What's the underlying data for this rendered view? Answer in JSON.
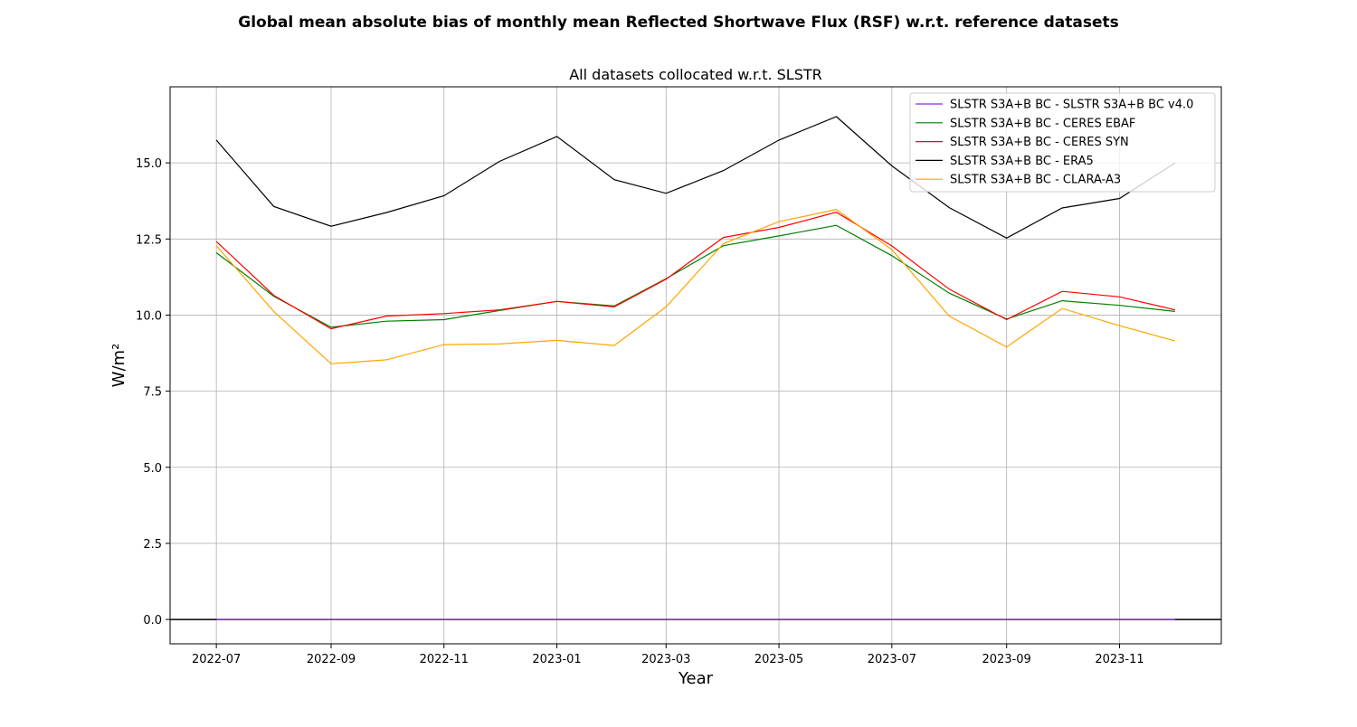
{
  "chart_data": {
    "type": "line",
    "title": "Global mean absolute bias of monthly mean Reflected Shortwave Flux (RSF) w.r.t. reference datasets",
    "subtitle": "All datasets collocated w.r.t. SLSTR",
    "xlabel": "Year",
    "ylabel": "W/m²",
    "xlim": [
      "2022-06-06",
      "2023-12-26"
    ],
    "ylim": [
      -0.8,
      17.5
    ],
    "x_ticks": [
      "2022-07",
      "2022-09",
      "2022-11",
      "2023-01",
      "2023-03",
      "2023-05",
      "2023-07",
      "2023-09",
      "2023-11"
    ],
    "y_ticks": [
      "0.0",
      "2.5",
      "5.0",
      "7.5",
      "10.0",
      "12.5",
      "15.0"
    ],
    "y_tick_values": [
      0,
      2.5,
      5,
      7.5,
      10,
      12.5,
      15
    ],
    "grid": true,
    "legend_position": "top-right",
    "zero_line": 0,
    "x": [
      "2022-07",
      "2022-08",
      "2022-09",
      "2022-10",
      "2022-11",
      "2022-12",
      "2023-01",
      "2023-02",
      "2023-03",
      "2023-04",
      "2023-05",
      "2023-06",
      "2023-07",
      "2023-08",
      "2023-09",
      "2023-10",
      "2023-11",
      "2023-12"
    ],
    "series": [
      {
        "name": "SLSTR S3A+B BC - SLSTR S3A+B BC v4.0",
        "color": "#8a2be2",
        "values": [
          0,
          0,
          0,
          0,
          0,
          0,
          0,
          0,
          0,
          0,
          0,
          0,
          0,
          0,
          0,
          0,
          0,
          0
        ]
      },
      {
        "name": "SLSTR S3A+B BC - CERES EBAF",
        "color": "#008000",
        "values": [
          12.05,
          10.62,
          9.6,
          9.8,
          9.85,
          10.15,
          10.45,
          10.3,
          11.2,
          12.28,
          12.6,
          12.95,
          11.95,
          10.72,
          9.87,
          10.47,
          10.32,
          10.12
        ]
      },
      {
        "name": "SLSTR S3A+B BC - CERES SYN",
        "color": "#ff0000",
        "values": [
          12.42,
          10.65,
          9.55,
          9.97,
          10.05,
          10.17,
          10.45,
          10.27,
          11.18,
          12.55,
          12.88,
          13.38,
          12.27,
          10.85,
          9.85,
          10.78,
          10.6,
          10.17
        ]
      },
      {
        "name": "SLSTR S3A+B BC - ERA5",
        "color": "#000000",
        "values": [
          15.75,
          13.57,
          12.92,
          13.37,
          13.92,
          15.05,
          15.87,
          14.45,
          14.0,
          14.75,
          15.75,
          16.52,
          14.9,
          13.53,
          12.53,
          13.52,
          13.83,
          15.0
        ]
      },
      {
        "name": "SLSTR S3A+B BC - CLARA-A3",
        "color": "#ffa500",
        "values": [
          12.28,
          10.12,
          8.4,
          8.53,
          9.03,
          9.05,
          9.17,
          9.0,
          10.27,
          12.35,
          13.07,
          13.47,
          12.15,
          9.97,
          8.95,
          10.22,
          9.65,
          9.15
        ]
      }
    ]
  }
}
